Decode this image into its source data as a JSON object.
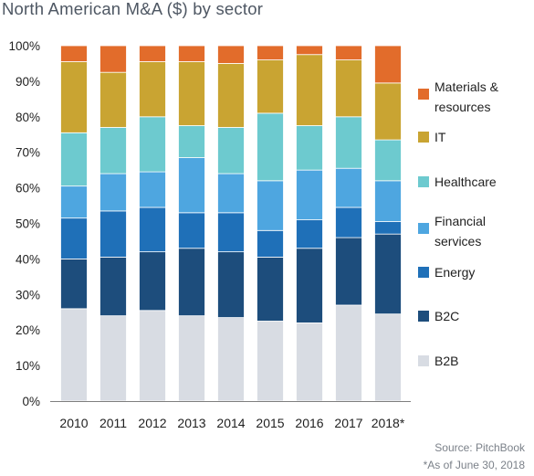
{
  "title": "North American M&A ($) by sector",
  "source": "Source: PitchBook",
  "footnote": "*As of June 30, 2018",
  "chart_data": {
    "type": "bar",
    "stacked": true,
    "percent": true,
    "ylim": [
      0,
      100
    ],
    "yticks": [
      "0%",
      "10%",
      "20%",
      "30%",
      "40%",
      "50%",
      "60%",
      "70%",
      "80%",
      "90%",
      "100%"
    ],
    "categories": [
      "2010",
      "2011",
      "2012",
      "2013",
      "2014",
      "2015",
      "2016",
      "2017",
      "2018*"
    ],
    "series": [
      {
        "name": "B2B",
        "color": "#d8dce3",
        "values": [
          26,
          24,
          25.5,
          24,
          23.5,
          22.5,
          22,
          27,
          24.5
        ]
      },
      {
        "name": "B2C",
        "color": "#1d4d7c",
        "values": [
          14,
          16.5,
          16.5,
          19,
          18.5,
          18,
          21,
          19,
          22.5
        ]
      },
      {
        "name": "Energy",
        "color": "#1f70b8",
        "values": [
          11.5,
          13,
          12.5,
          10,
          11,
          7.5,
          8,
          8.5,
          3.5
        ]
      },
      {
        "name": "Financial services",
        "color": "#4ea6e0",
        "values": [
          9,
          10.5,
          10,
          15.5,
          11,
          14,
          14,
          11,
          11.5
        ]
      },
      {
        "name": "Healthcare",
        "color": "#6dcacf",
        "values": [
          15,
          13,
          15.5,
          9,
          13,
          19,
          12.5,
          14.5,
          11.5
        ]
      },
      {
        "name": "IT",
        "color": "#c9a432",
        "values": [
          20,
          15.5,
          15.5,
          18,
          18,
          15,
          20,
          16,
          16
        ]
      },
      {
        "name": "Materials & resources",
        "color": "#e26c2b",
        "values": [
          4.5,
          7.5,
          4.5,
          4.5,
          5,
          4,
          2.5,
          4,
          10.5
        ]
      }
    ],
    "legend": {
      "position": "right",
      "order": [
        "Materials & resources",
        "IT",
        "Healthcare",
        "Financial services",
        "Energy",
        "B2C",
        "B2B"
      ],
      "labels": {
        "Materials & resources": [
          "Materials &",
          "resources"
        ],
        "IT": [
          "IT"
        ],
        "Healthcare": [
          "Healthcare"
        ],
        "Financial services": [
          "Financial",
          "services"
        ],
        "Energy": [
          "Energy"
        ],
        "B2C": [
          "B2C"
        ],
        "B2B": [
          "B2B"
        ]
      }
    },
    "grid": false
  }
}
